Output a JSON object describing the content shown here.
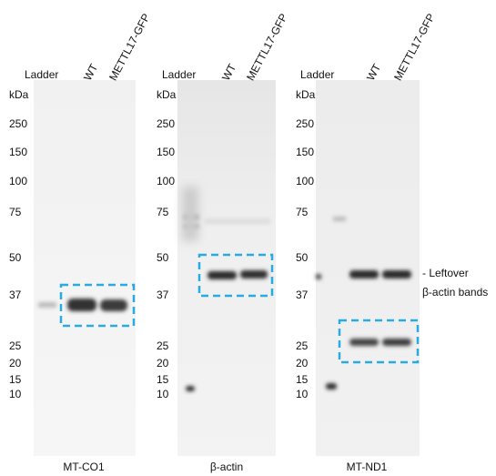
{
  "panels": [
    {
      "columns": [
        "Ladder",
        "WT",
        "METTL17-GFP"
      ],
      "unit": "kDa",
      "markers": [
        "250",
        "150",
        "100",
        "75",
        "50",
        "37",
        "25",
        "20",
        "15",
        "10"
      ],
      "caption": "MT-CO1"
    },
    {
      "columns": [
        "Ladder",
        "WT",
        "METTL17-GFP"
      ],
      "unit": "kDa",
      "markers": [
        "250",
        "150",
        "100",
        "75",
        "50",
        "37",
        "25",
        "20",
        "15",
        "10"
      ],
      "caption": "β-actin"
    },
    {
      "columns": [
        "Ladder",
        "WT",
        "METTL17-GFP"
      ],
      "unit": "kDa",
      "markers": [
        "250",
        "150",
        "100",
        "75",
        "50",
        "37",
        "25",
        "20",
        "15",
        "10"
      ],
      "caption": "MT-ND1"
    }
  ],
  "annotation": {
    "lines": [
      "- Leftover",
      "β-actin bands"
    ]
  }
}
